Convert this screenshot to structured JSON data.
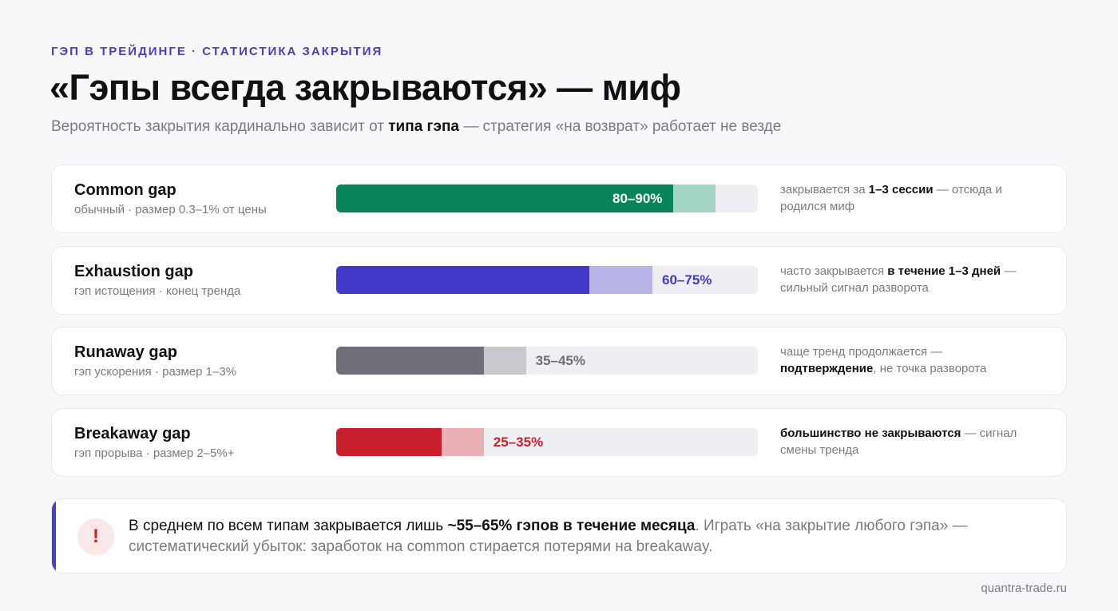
{
  "eyebrow": "ГЭП В ТРЕЙДИНГЕ · СТАТИСТИКА ЗАКРЫТИЯ",
  "title": "«Гэпы всегда закрываются» — миф",
  "subtitle": {
    "prefix": "Вероятность закрытия кардинально зависит от ",
    "bold": "типа гэпа",
    "suffix": " — стратегия «на возврат» работает не везде"
  },
  "colors": {
    "accent": "#4a3fc2",
    "common": "#07845a",
    "exhaustion": "#4238c9",
    "runaway": "#6e6f78",
    "breakaway": "#c91f2e"
  },
  "chart_data": {
    "type": "bar",
    "orientation": "horizontal",
    "value_unit": "%",
    "xlim": [
      0,
      100
    ],
    "categories": [
      "Common gap",
      "Exhaustion gap",
      "Runaway gap",
      "Breakaway gap"
    ],
    "rows": [
      {
        "name": "Common gap",
        "sub": "обычный · размер 0.3–1% от цены",
        "low": 80,
        "high": 90,
        "label": "80–90%",
        "label_inside": true,
        "color": "#07845a",
        "range_color": "#a2d5c3",
        "label_color": "#ffffff",
        "note": [
          {
            "t": "закрывается за ",
            "b": false
          },
          {
            "t": "1–3 сессии",
            "b": true
          },
          {
            "t": " — отсюда и родился миф",
            "b": false
          }
        ]
      },
      {
        "name": "Exhaustion gap",
        "sub": "гэп истощения · конец тренда",
        "low": 60,
        "high": 75,
        "label": "60–75%",
        "label_inside": false,
        "color": "#4238c9",
        "range_color": "#b7b3e7",
        "label_color": "#4238c9",
        "note": [
          {
            "t": "часто закрывается ",
            "b": false
          },
          {
            "t": "в течение 1–3 дней",
            "b": true
          },
          {
            "t": " — сильный сигнал разворота",
            "b": false
          }
        ]
      },
      {
        "name": "Runaway gap",
        "sub": "гэп ускорения · размер 1–3%",
        "low": 35,
        "high": 45,
        "label": "35–45%",
        "label_inside": false,
        "color": "#6e6f78",
        "range_color": "#c8c8ce",
        "label_color": "#6e6f78",
        "note": [
          {
            "t": "чаще тренд продолжается — ",
            "b": false
          },
          {
            "t": "подтверждение",
            "b": true
          },
          {
            "t": ", не точка разворота",
            "b": false
          }
        ]
      },
      {
        "name": "Breakaway gap",
        "sub": "гэп прорыва · размер 2–5%+",
        "low": 25,
        "high": 35,
        "label": "25–35%",
        "label_inside": false,
        "color": "#c91f2e",
        "range_color": "#e9b1b6",
        "label_color": "#c91f2e",
        "note": [
          {
            "t": "большинство не закрываются",
            "b": true
          },
          {
            "t": " — сигнал смены тренда",
            "b": false
          }
        ]
      }
    ]
  },
  "callout": {
    "icon": "exclamation-icon",
    "icon_glyph": "!",
    "p1": "В среднем по всем типам закрывается лишь ",
    "bold": "~55–65% гэпов в течение месяца",
    "p2": ". Играть «на закрытие любого гэпа» — систематический убыток: заработок на common стирается потерями на breakaway."
  },
  "source": "quantra-trade.ru"
}
